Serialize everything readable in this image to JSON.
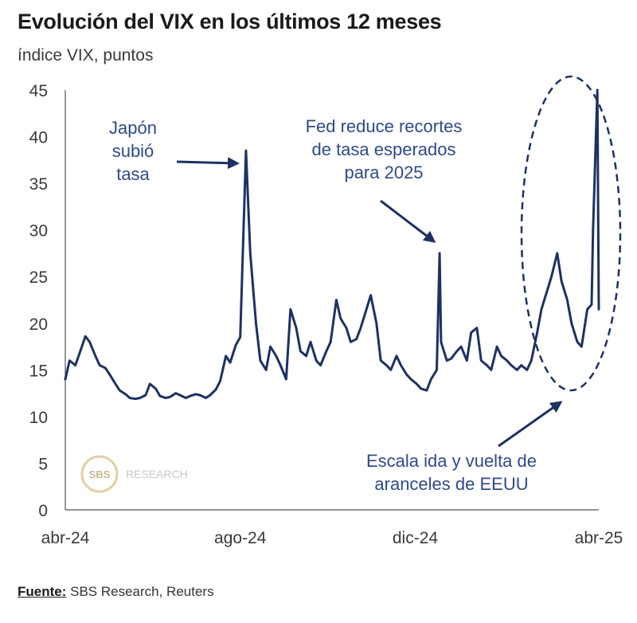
{
  "title": "Evolución del VIX en los últimos 12 meses",
  "subtitle": "índice VIX, puntos",
  "source": {
    "label": "Fuente:",
    "text": " SBS Research, Reuters"
  },
  "watermark": {
    "badge": "SBS",
    "text": "RESEARCH"
  },
  "colors": {
    "line": "#1e3163",
    "annotation": "#2f4a8a",
    "axis": "#555555",
    "tick_text": "#3a3a3a"
  },
  "chart_data": {
    "type": "line",
    "title": "Evolución del VIX en los últimos 12 meses",
    "ylabel": "índice VIX, puntos",
    "xlabel": "",
    "ylim": [
      0,
      45
    ],
    "yticks": [
      0,
      5,
      10,
      15,
      20,
      25,
      30,
      35,
      40,
      45
    ],
    "xticks": [
      "abr-24",
      "ago-24",
      "dic-24",
      "abr-25"
    ],
    "grid": false,
    "series": [
      {
        "x": [
          "2024-04-01",
          "2024-04-04",
          "2024-04-08",
          "2024-04-11",
          "2024-04-15",
          "2024-04-18",
          "2024-04-22",
          "2024-04-25",
          "2024-04-29",
          "2024-05-02",
          "2024-05-06",
          "2024-05-09",
          "2024-05-13",
          "2024-05-16",
          "2024-05-20",
          "2024-05-23",
          "2024-05-27",
          "2024-05-30",
          "2024-06-03",
          "2024-06-06",
          "2024-06-10",
          "2024-06-13",
          "2024-06-17",
          "2024-06-20",
          "2024-06-24",
          "2024-06-27",
          "2024-07-01",
          "2024-07-04",
          "2024-07-08",
          "2024-07-11",
          "2024-07-15",
          "2024-07-18",
          "2024-07-22",
          "2024-07-25",
          "2024-07-29",
          "2024-08-01",
          "2024-08-05",
          "2024-08-08",
          "2024-08-12",
          "2024-08-15",
          "2024-08-19",
          "2024-08-22",
          "2024-08-26",
          "2024-08-29",
          "2024-09-02",
          "2024-09-05",
          "2024-09-09",
          "2024-09-12",
          "2024-09-16",
          "2024-09-19",
          "2024-09-23",
          "2024-09-26",
          "2024-09-30",
          "2024-10-03",
          "2024-10-07",
          "2024-10-10",
          "2024-10-14",
          "2024-10-17",
          "2024-10-21",
          "2024-10-24",
          "2024-10-28",
          "2024-10-31",
          "2024-11-04",
          "2024-11-07",
          "2024-11-11",
          "2024-11-14",
          "2024-11-18",
          "2024-11-21",
          "2024-11-25",
          "2024-11-28",
          "2024-12-02",
          "2024-12-05",
          "2024-12-09",
          "2024-12-12",
          "2024-12-16",
          "2024-12-18",
          "2024-12-19",
          "2024-12-23",
          "2024-12-26",
          "2024-12-30",
          "2025-01-02",
          "2025-01-06",
          "2025-01-09",
          "2025-01-13",
          "2025-01-16",
          "2025-01-20",
          "2025-01-23",
          "2025-01-27",
          "2025-01-30",
          "2025-02-03",
          "2025-02-06",
          "2025-02-10",
          "2025-02-13",
          "2025-02-17",
          "2025-02-20",
          "2025-02-24",
          "2025-02-27",
          "2025-03-03",
          "2025-03-06",
          "2025-03-10",
          "2025-03-13",
          "2025-03-17",
          "2025-03-20",
          "2025-03-24",
          "2025-03-27",
          "2025-03-31",
          "2025-04-03",
          "2025-04-04",
          "2025-04-07",
          "2025-04-08"
        ],
        "y": [
          14.0,
          16.0,
          15.5,
          16.8,
          18.6,
          18.0,
          16.5,
          15.5,
          15.2,
          14.5,
          13.5,
          12.8,
          12.4,
          12.0,
          11.9,
          12.0,
          12.3,
          13.5,
          13.0,
          12.2,
          12.0,
          12.1,
          12.5,
          12.3,
          12.0,
          12.2,
          12.4,
          12.3,
          12.0,
          12.3,
          12.9,
          13.8,
          16.5,
          15.8,
          17.7,
          18.5,
          38.5,
          27.5,
          20.0,
          16.0,
          15.0,
          17.5,
          16.5,
          15.5,
          14.0,
          21.5,
          19.5,
          17.0,
          16.5,
          18.0,
          16.0,
          15.5,
          17.0,
          18.0,
          22.5,
          20.5,
          19.5,
          18.0,
          18.3,
          19.5,
          21.5,
          23.0,
          20.0,
          16.0,
          15.5,
          15.0,
          16.5,
          15.5,
          14.5,
          14.0,
          13.5,
          13.0,
          12.8,
          14.0,
          15.0,
          27.5,
          18.0,
          16.0,
          16.2,
          17.0,
          17.5,
          16.0,
          19.0,
          19.5,
          16.0,
          15.5,
          15.0,
          17.5,
          16.5,
          16.0,
          15.5,
          15.0,
          15.5,
          15.0,
          16.0,
          19.0,
          21.5,
          23.5,
          25.0,
          27.5,
          24.5,
          22.5,
          20.0,
          18.0,
          17.5,
          21.5,
          22.0,
          30.0,
          45.0,
          21.5
        ]
      }
    ],
    "annotations": [
      {
        "lines": [
          "Japón",
          "subió",
          "tasa"
        ]
      },
      {
        "lines": [
          "Fed reduce recortes",
          "de tasa esperados",
          "para 2025"
        ]
      },
      {
        "lines": [
          "Escala ida y vuelta de",
          "aranceles de EEUU"
        ]
      }
    ]
  }
}
